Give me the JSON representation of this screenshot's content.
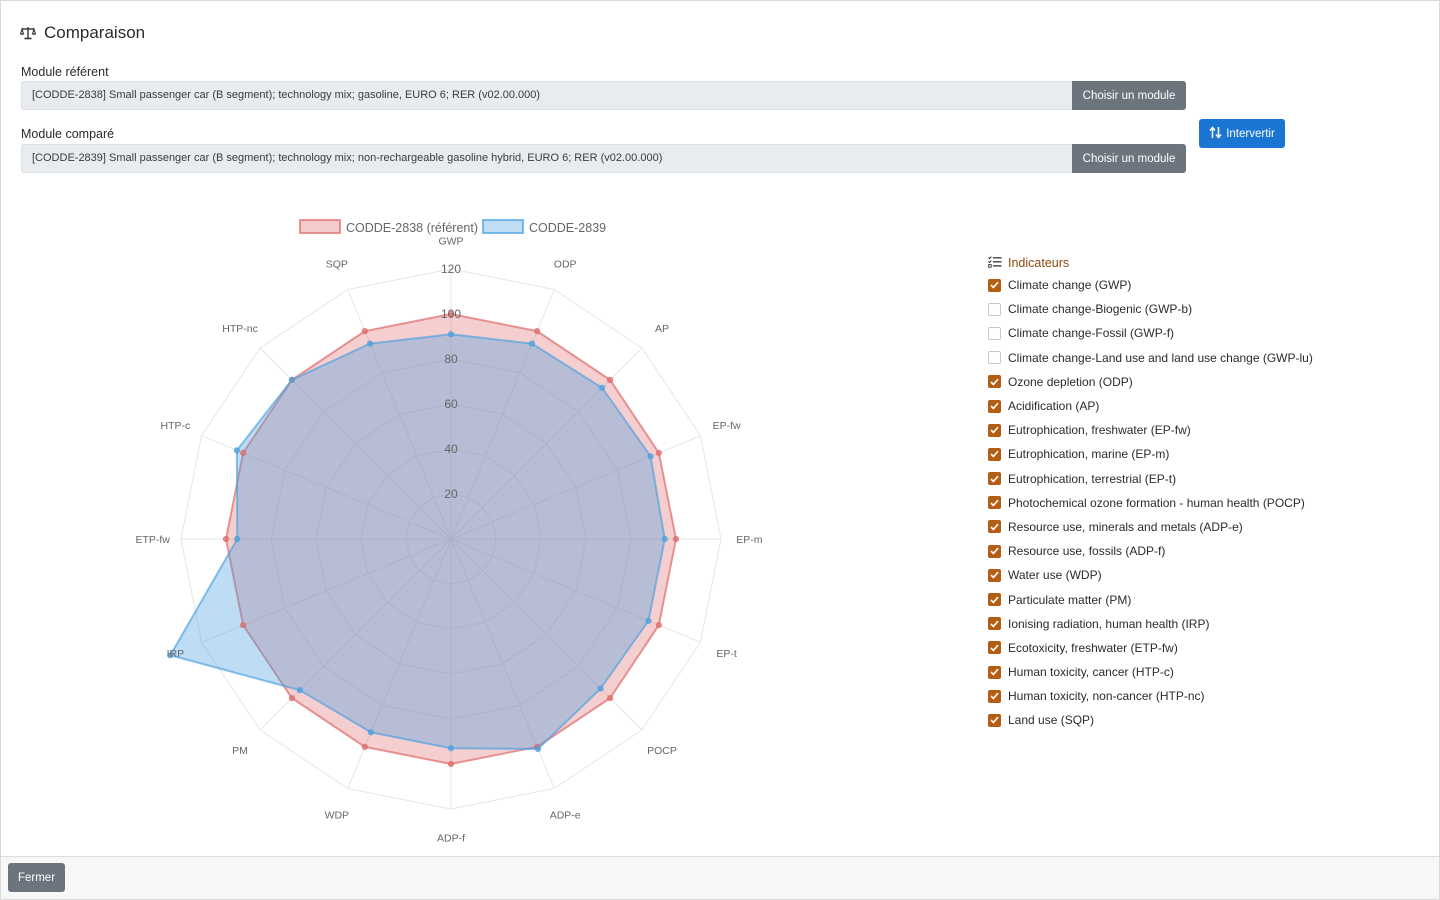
{
  "header": {
    "title": "Comparaison",
    "icon": "balance-scale-icon"
  },
  "reference": {
    "label": "Module référent",
    "value": "[CODDE-2838] Small passenger car (B segment); technology mix; gasoline, EURO 6; RER (v02.00.000)",
    "button": "Choisir un module"
  },
  "compared": {
    "label": "Module comparé",
    "value": "[CODDE-2839] Small passenger car (B segment); technology mix; non-rechargeable gasoline hybrid, EURO 6; RER (v02.00.000)",
    "button": "Choisir un module"
  },
  "swap_button": {
    "label": "Intervertir",
    "icon": "swap-arrows-icon",
    "color": "#1a76d2"
  },
  "indicators": {
    "title": "Indicateurs",
    "icon": "list-check-icon",
    "accent": "#b45d14",
    "items": [
      {
        "label": "Climate change (GWP)",
        "checked": true
      },
      {
        "label": "Climate change-Biogenic (GWP-b)",
        "checked": false
      },
      {
        "label": "Climate change-Fossil (GWP-f)",
        "checked": false
      },
      {
        "label": "Climate change-Land use and land use change (GWP-lu)",
        "checked": false
      },
      {
        "label": "Ozone depletion (ODP)",
        "checked": true
      },
      {
        "label": "Acidification (AP)",
        "checked": true
      },
      {
        "label": "Eutrophication, freshwater (EP-fw)",
        "checked": true
      },
      {
        "label": "Eutrophication, marine (EP-m)",
        "checked": true
      },
      {
        "label": "Eutrophication, terrestrial (EP-t)",
        "checked": true
      },
      {
        "label": "Photochemical ozone formation - human health (POCP)",
        "checked": true
      },
      {
        "label": "Resource use, minerals and metals (ADP-e)",
        "checked": true
      },
      {
        "label": "Resource use, fossils (ADP-f)",
        "checked": true
      },
      {
        "label": "Water use (WDP)",
        "checked": true
      },
      {
        "label": "Particulate matter (PM)",
        "checked": true
      },
      {
        "label": "Ionising radiation, human health (IRP)",
        "checked": true
      },
      {
        "label": "Ecotoxicity, freshwater (ETP-fw)",
        "checked": true
      },
      {
        "label": "Human toxicity, cancer (HTP-c)",
        "checked": true
      },
      {
        "label": "Human toxicity, non-cancer (HTP-nc)",
        "checked": true
      },
      {
        "label": "Land use (SQP)",
        "checked": true
      }
    ]
  },
  "footer": {
    "close_label": "Fermer"
  },
  "chart_data": {
    "type": "radar",
    "categories": [
      "GWP",
      "ODP",
      "AP",
      "EP-fw",
      "EP-m",
      "EP-t",
      "POCP",
      "ADP-e",
      "ADP-f",
      "WDP",
      "PM",
      "IRP",
      "ETP-fw",
      "HTP-c",
      "HTP-nc",
      "SQP"
    ],
    "series": [
      {
        "name": "CODDE-2838 (référent)",
        "color": "#e06a6a",
        "values": [
          100,
          100,
          100,
          100,
          100,
          100,
          100,
          100,
          100,
          100,
          100,
          100,
          100,
          100,
          100,
          100
        ]
      },
      {
        "name": "CODDE-2839",
        "color": "#4a9fe0",
        "values": [
          91,
          94,
          95,
          96,
          95,
          95,
          94,
          101,
          93,
          93,
          95,
          135,
          95,
          103,
          100,
          94
        ]
      }
    ],
    "r_ticks": [
      "20",
      "40",
      "60",
      "80",
      "100",
      "120"
    ],
    "r_range": [
      0,
      120
    ],
    "grid": true,
    "legend": "top"
  }
}
